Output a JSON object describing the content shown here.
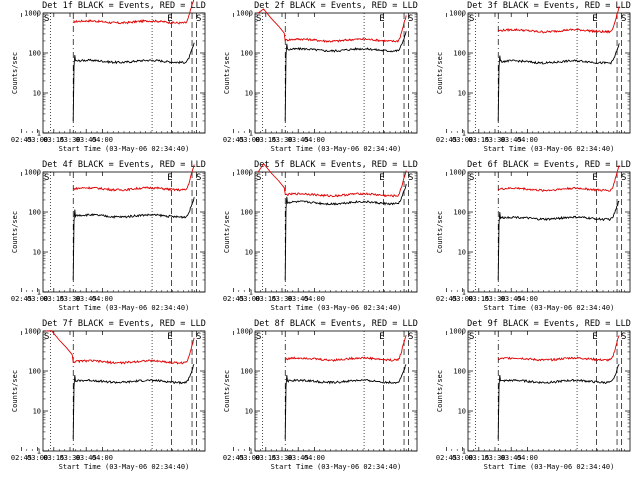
{
  "chart_data": {
    "type": "line",
    "y_scale": "log",
    "ylim": [
      1,
      1000
    ],
    "y_ticks": [
      "1",
      "10",
      "100",
      "1000"
    ],
    "ylabel": "Counts/sec",
    "x_ticks": [
      "02:45",
      "03:00",
      "03:15",
      "03:30",
      "03:45",
      "04:00"
    ],
    "xlabel": "Start Time (03-May-06 02:34:40)",
    "series_colors": {
      "events": "#000000",
      "lld": "#e00000"
    },
    "panels": [
      {
        "title": "Det 1f BLACK = Events, RED = LLD",
        "flags": [
          "S",
          "E",
          "S"
        ],
        "x_tick_labels": [
          "02:45",
          "03:00",
          "03:15",
          "03:30",
          "03:45",
          "04:00"
        ],
        "xlabel": "Start Time (03-May-06 02:34:40)",
        "ylabel": "Counts/sec",
        "y_tick_labels": [
          "1",
          "10",
          "100",
          "1000"
        ],
        "events_level": 62,
        "lld_level": 600
      },
      {
        "title": "Det 2f BLACK = Events, RED = LLD",
        "flags": [
          "S",
          "E",
          "S"
        ],
        "x_tick_labels": [
          "02:45",
          "03:00",
          "03:15",
          "03:30",
          "03:45",
          "04:00"
        ],
        "xlabel": "Start Time (03-May-06 02:34:40)",
        "ylabel": "Counts/sec",
        "y_tick_labels": [
          "1",
          "10",
          "100",
          "1000"
        ],
        "events_level": 120,
        "lld_level": 210
      },
      {
        "title": "Det 3f BLACK = Events, RED = LLD",
        "flags": [
          "S",
          "E",
          "S"
        ],
        "x_tick_labels": [
          "02:45",
          "03:00",
          "03:15",
          "03:30",
          "03:45",
          "04:00"
        ],
        "xlabel": "Start Time (03-May-06 02:34:40)",
        "ylabel": "Counts/sec",
        "y_tick_labels": [
          "1",
          "10",
          "100",
          "1000"
        ],
        "events_level": 60,
        "lld_level": 360
      },
      {
        "title": "Det 4f BLACK = Events, RED = LLD",
        "flags": [
          "S",
          "E",
          "S"
        ],
        "x_tick_labels": [
          "02:45",
          "03:00",
          "03:15",
          "03:30",
          "03:45",
          "04:00"
        ],
        "xlabel": "Start Time (03-May-06 02:34:40)",
        "ylabel": "Counts/sec",
        "y_tick_labels": [
          "1",
          "10",
          "100",
          "1000"
        ],
        "events_level": 80,
        "lld_level": 380
      },
      {
        "title": "Det 5f BLACK = Events, RED = LLD",
        "flags": [
          "S",
          "E",
          "S"
        ],
        "x_tick_labels": [
          "02:45",
          "03:00",
          "03:15",
          "03:30",
          "03:45",
          "04:00"
        ],
        "xlabel": "Start Time (03-May-06 02:34:40)",
        "ylabel": "Counts/sec",
        "y_tick_labels": [
          "1",
          "10",
          "100",
          "1000"
        ],
        "events_level": 170,
        "lld_level": 270
      },
      {
        "title": "Det 6f BLACK = Events, RED = LLD",
        "flags": [
          "S",
          "E",
          "S"
        ],
        "x_tick_labels": [
          "02:45",
          "03:00",
          "03:15",
          "03:30",
          "03:45",
          "04:00"
        ],
        "xlabel": "Start Time (03-May-06 02:34:40)",
        "ylabel": "Counts/sec",
        "y_tick_labels": [
          "1",
          "10",
          "100",
          "1000"
        ],
        "events_level": 70,
        "lld_level": 370
      },
      {
        "title": "Det 7f BLACK = Events, RED = LLD",
        "flags": [
          "S",
          "E",
          "S"
        ],
        "x_tick_labels": [
          "02:45",
          "03:00",
          "03:15",
          "03:30",
          "03:45",
          "04:00"
        ],
        "xlabel": "Start Time (03-May-06 02:34:40)",
        "ylabel": "Counts/sec",
        "y_tick_labels": [
          "1",
          "10",
          "100",
          "1000"
        ],
        "events_level": 55,
        "lld_level": 170
      },
      {
        "title": "Det 8f BLACK = Events, RED = LLD",
        "flags": [
          "S",
          "E",
          "S"
        ],
        "x_tick_labels": [
          "02:45",
          "03:00",
          "03:15",
          "03:30",
          "03:45",
          "04:00"
        ],
        "xlabel": "Start Time (03-May-06 02:34:40)",
        "ylabel": "Counts/sec",
        "y_tick_labels": [
          "1",
          "10",
          "100",
          "1000"
        ],
        "events_level": 55,
        "lld_level": 200
      },
      {
        "title": "Det 9f BLACK = Events, RED = LLD",
        "flags": [
          "S",
          "E",
          "S"
        ],
        "x_tick_labels": [
          "02:45",
          "03:00",
          "03:15",
          "03:30",
          "03:45",
          "04:00"
        ],
        "xlabel": "Start Time (03-May-06 02:34:40)",
        "ylabel": "Counts/sec",
        "y_tick_labels": [
          "1",
          "10",
          "100",
          "1000"
        ],
        "events_level": 55,
        "lld_level": 200
      }
    ]
  }
}
